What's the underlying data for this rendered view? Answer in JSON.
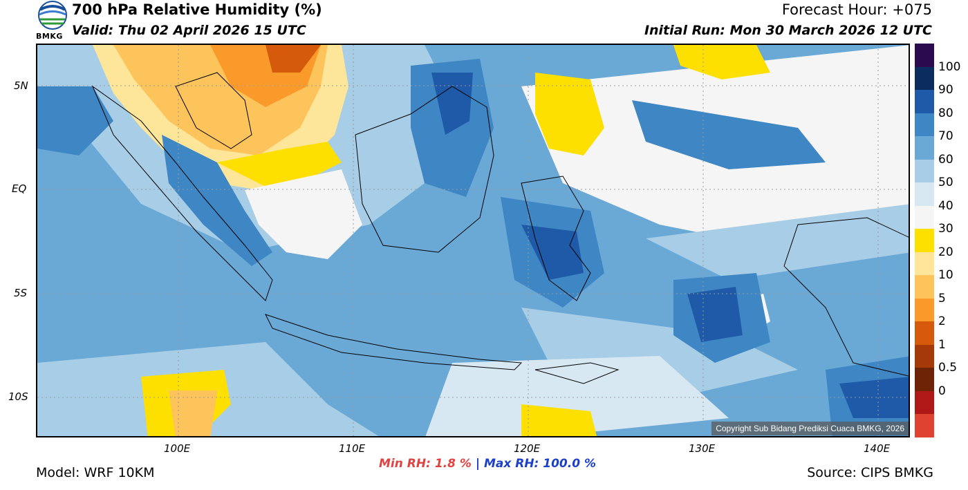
{
  "header": {
    "title": "700 hPa Relative Humidity (%)",
    "valid": "Valid: Thu 02 April 2026 15 UTC",
    "forecast_hour": "Forecast Hour: +075",
    "initial_run": "Initial Run: Mon 30 March 2026 12 UTC",
    "logo_text": "BMKG"
  },
  "axes": {
    "lat_labels": [
      "5N",
      "EQ",
      "5S",
      "10S"
    ],
    "lon_labels": [
      "100E",
      "110E",
      "120E",
      "130E",
      "140E"
    ]
  },
  "colorbar": {
    "labels": [
      "100",
      "90",
      "80",
      "70",
      "60",
      "50",
      "40",
      "30",
      "20",
      "10",
      "5",
      "2",
      "1",
      "0.5",
      "0"
    ],
    "colors": [
      "#2b0a4e",
      "#0b2c5e",
      "#1f5aa8",
      "#3f86c4",
      "#6aa8d6",
      "#a8cde6",
      "#d8e8f3",
      "#f5f5f5",
      "#fde000",
      "#fde69a",
      "#fcc45a",
      "#f99a2b",
      "#d65a0b",
      "#a53a08",
      "#6e2307",
      "#b01818",
      "#e04232"
    ]
  },
  "stats": {
    "min_label": "Min RH:",
    "min_value": "1.8 %",
    "separator": "|",
    "max_label": "Max RH:",
    "max_value": "100.0 %"
  },
  "footer": {
    "model": "Model: WRF 10KM",
    "source": "Source: CIPS BMKG",
    "copyright": "Copyright Sub Bidang Prediksi Cuaca BMKG, 2026"
  }
}
